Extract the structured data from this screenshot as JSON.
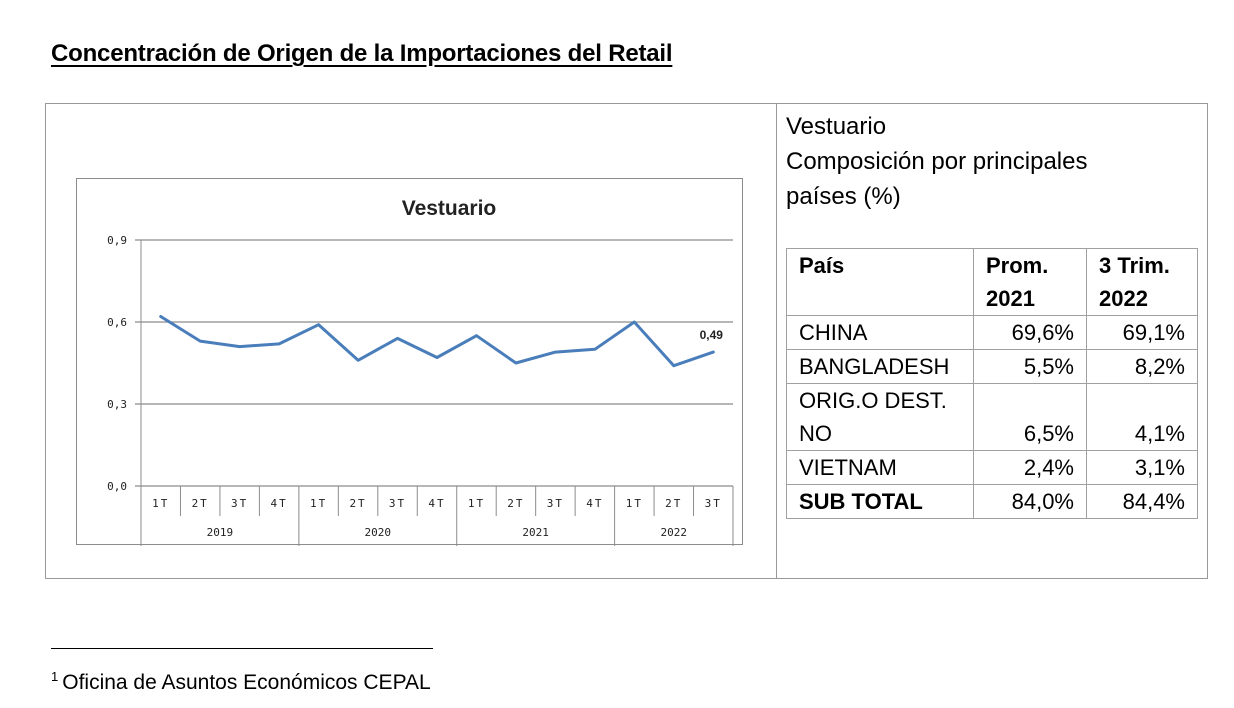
{
  "document": {
    "title": "Concentración de Origen de la Importaciones del Retail",
    "footnote_marker": "1",
    "footnote_text": "Oficina de Asuntos Económicos CEPAL"
  },
  "right_panel": {
    "heading_line1": "Vestuario",
    "heading_line2": "Composición por principales",
    "heading_line3": "países (%)"
  },
  "table": {
    "headers": {
      "pais": "País",
      "prom_line1": "Prom.",
      "prom_line2": "2021",
      "trim_line1": "3 Trim.",
      "trim_line2": "2022"
    },
    "rows": [
      {
        "pais": "CHINA",
        "prom": "69,6%",
        "trim": "69,1%"
      },
      {
        "pais": "BANGLADESH",
        "prom": "5,5%",
        "trim": "8,2%"
      },
      {
        "pais_line1": "ORIG.O DEST.",
        "pais_line2": "NO",
        "prom": "6,5%",
        "trim": "4,1%"
      },
      {
        "pais": "VIETNAM",
        "prom": "2,4%",
        "trim": "3,1%"
      },
      {
        "pais": "SUB TOTAL",
        "prom": "84,0%",
        "trim": "84,4%"
      }
    ]
  },
  "chart_data": {
    "type": "line",
    "title": "Vestuario",
    "xlabel": "",
    "ylabel": "",
    "ylim": [
      0,
      0.9
    ],
    "yticks": [
      "0,0",
      "0,3",
      "0,6",
      "0,9"
    ],
    "grid": true,
    "line_color": "#4a7ebb",
    "categories": [
      "1T",
      "2T",
      "3T",
      "4T",
      "1T",
      "2T",
      "3T",
      "4T",
      "1T",
      "2T",
      "3T",
      "4T",
      "1T",
      "2T",
      "3T"
    ],
    "groups": [
      {
        "label": "2019",
        "count": 4
      },
      {
        "label": "2020",
        "count": 4
      },
      {
        "label": "2021",
        "count": 4
      },
      {
        "label": "2022",
        "count": 3
      }
    ],
    "series": [
      {
        "values": [
          0.62,
          0.53,
          0.51,
          0.52,
          0.59,
          0.46,
          0.54,
          0.47,
          0.55,
          0.45,
          0.49,
          0.5,
          0.6,
          0.44,
          0.49
        ]
      }
    ],
    "annotation": "0,49"
  }
}
